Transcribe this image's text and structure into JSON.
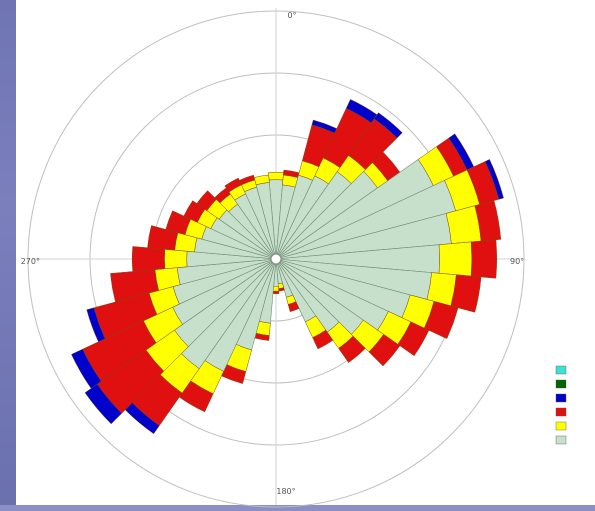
{
  "chart_data": {
    "type": "wind-rose",
    "title": "",
    "direction_labels": {
      "north": "0°",
      "east": "90°",
      "south": "180°",
      "west": "270°"
    },
    "ring_labels": [
      "",
      "",
      "",
      ""
    ],
    "legend": {
      "title": "",
      "entries": [
        {
          "label": "",
          "color": "#40e0d0"
        },
        {
          "label": "",
          "color": "#006400"
        },
        {
          "label": "",
          "color": "#0000cc"
        },
        {
          "label": "",
          "color": "#e01010"
        },
        {
          "label": "",
          "color": "#ffff00"
        },
        {
          "label": "",
          "color": "#c7e0cc"
        }
      ],
      "footer": ""
    },
    "bands": [
      {
        "name": "",
        "color": "#c7e0cc"
      },
      {
        "name": "",
        "color": "#ffff00"
      },
      {
        "name": "",
        "color": "#e01010"
      },
      {
        "name": "",
        "color": "#0000cc"
      }
    ],
    "sector_width_deg": 10,
    "sectors": [
      {
        "dir": 0,
        "values": [
          3.2,
          0.3,
          0.0,
          0.0
        ]
      },
      {
        "dir": 10,
        "values": [
          3.0,
          0.4,
          0.2,
          0.0
        ]
      },
      {
        "dir": 20,
        "values": [
          3.5,
          0.6,
          1.5,
          0.2
        ]
      },
      {
        "dir": 30,
        "values": [
          3.7,
          0.8,
          2.2,
          0.4
        ]
      },
      {
        "dir": 40,
        "values": [
          4.3,
          0.8,
          1.8,
          0.3
        ]
      },
      {
        "dir": 50,
        "values": [
          5.0,
          0.5,
          0.6,
          0.0
        ]
      },
      {
        "dir": 60,
        "values": [
          7.0,
          0.9,
          0.6,
          0.3
        ]
      },
      {
        "dir": 70,
        "values": [
          7.5,
          1.0,
          0.8,
          0.2
        ]
      },
      {
        "dir": 80,
        "values": [
          7.1,
          1.2,
          0.8,
          0.0
        ]
      },
      {
        "dir": 90,
        "values": [
          6.6,
          1.3,
          1.0,
          0.0
        ]
      },
      {
        "dir": 100,
        "values": [
          6.3,
          1.0,
          1.0,
          0.0
        ]
      },
      {
        "dir": 110,
        "values": [
          5.6,
          1.0,
          1.0,
          0.0
        ]
      },
      {
        "dir": 120,
        "values": [
          5.0,
          1.0,
          0.8,
          0.0
        ]
      },
      {
        "dir": 130,
        "values": [
          4.3,
          1.0,
          0.8,
          0.0
        ]
      },
      {
        "dir": 140,
        "values": [
          3.6,
          0.8,
          0.7,
          0.0
        ]
      },
      {
        "dir": 150,
        "values": [
          2.8,
          0.7,
          0.5,
          0.0
        ]
      },
      {
        "dir": 160,
        "values": [
          1.6,
          0.3,
          0.3,
          0.0
        ]
      },
      {
        "dir": 170,
        "values": [
          1.0,
          0.2,
          0.1,
          0.0
        ]
      },
      {
        "dir": 180,
        "values": [
          1.1,
          0.2,
          0.1,
          0.0
        ]
      },
      {
        "dir": 190,
        "values": [
          2.6,
          0.5,
          0.2,
          0.0
        ]
      },
      {
        "dir": 200,
        "values": [
          3.8,
          0.9,
          0.5,
          0.0
        ]
      },
      {
        "dir": 210,
        "values": [
          5.0,
          1.0,
          0.8,
          0.0
        ]
      },
      {
        "dir": 220,
        "values": [
          5.4,
          1.2,
          1.6,
          0.4
        ]
      },
      {
        "dir": 230,
        "values": [
          5.0,
          1.4,
          2.4,
          0.6
        ]
      },
      {
        "dir": 240,
        "values": [
          4.6,
          1.3,
          2.7,
          0.5
        ]
      },
      {
        "dir": 250,
        "values": [
          4.3,
          1.0,
          2.3,
          0.3
        ]
      },
      {
        "dir": 260,
        "values": [
          4.0,
          0.9,
          1.8,
          0.0
        ]
      },
      {
        "dir": 270,
        "values": [
          3.6,
          0.9,
          1.3,
          0.0
        ]
      },
      {
        "dir": 280,
        "values": [
          3.3,
          0.8,
          1.1,
          0.0
        ]
      },
      {
        "dir": 290,
        "values": [
          3.1,
          0.7,
          0.8,
          0.0
        ]
      },
      {
        "dir": 300,
        "values": [
          2.9,
          0.6,
          0.6,
          0.0
        ]
      },
      {
        "dir": 310,
        "values": [
          2.8,
          0.6,
          0.5,
          0.0
        ]
      },
      {
        "dir": 320,
        "values": [
          2.7,
          0.5,
          0.3,
          0.0
        ]
      },
      {
        "dir": 330,
        "values": [
          2.9,
          0.4,
          0.3,
          0.0
        ]
      },
      {
        "dir": 340,
        "values": [
          3.0,
          0.3,
          0.2,
          0.0
        ]
      },
      {
        "dir": 350,
        "values": [
          3.1,
          0.3,
          0.0,
          0.0
        ]
      }
    ]
  }
}
